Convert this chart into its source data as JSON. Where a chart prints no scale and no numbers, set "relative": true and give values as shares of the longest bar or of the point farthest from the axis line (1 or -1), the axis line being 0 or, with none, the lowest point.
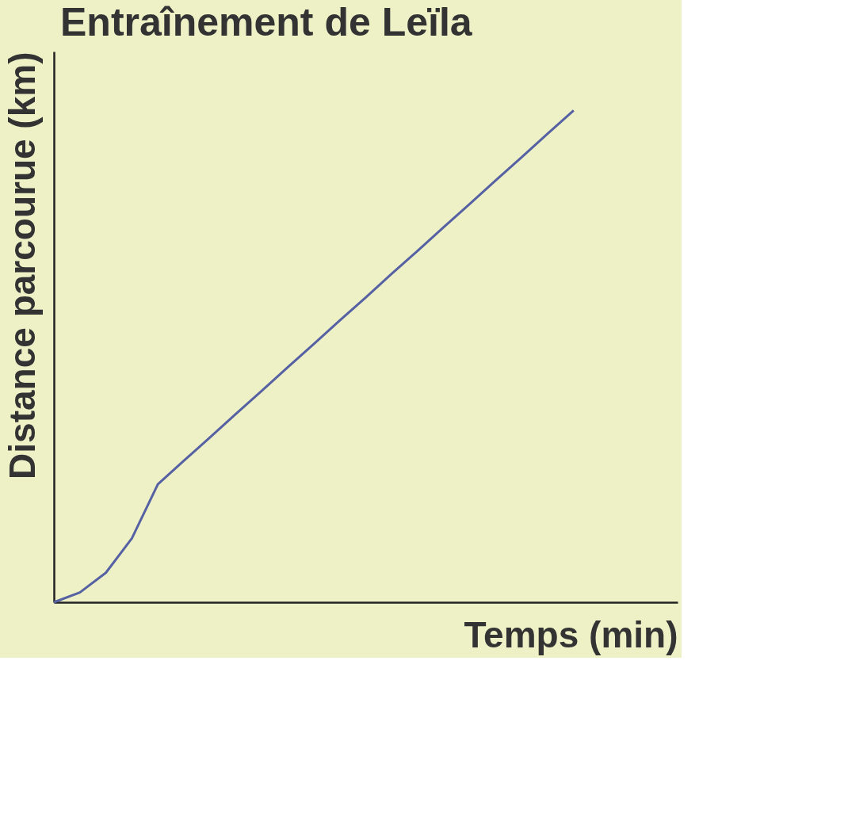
{
  "chart_data": {
    "type": "line",
    "title": "Entraînement de Leïla",
    "xlabel": "Temps (min)",
    "ylabel": "Distance parcourue (km)",
    "relative": true,
    "grid": false,
    "legend": false,
    "categories": [
      null,
      null,
      null,
      null,
      null,
      null,
      null,
      null,
      null,
      null,
      null,
      null,
      null,
      null,
      null,
      null,
      null,
      null,
      null,
      null,
      null,
      null,
      null,
      null,
      null
    ],
    "series": [
      {
        "color": "#5561a3",
        "values": [
          0,
          0.02,
          0.06,
          0.13,
          0.24,
          0.288,
          0.335,
          0.383,
          0.43,
          0.478,
          0.525,
          0.573,
          0.62,
          0.668,
          0.715,
          0.763,
          0.81,
          0.858,
          0.905,
          0.953,
          1,
          null,
          null,
          null,
          null
        ]
      }
    ]
  }
}
